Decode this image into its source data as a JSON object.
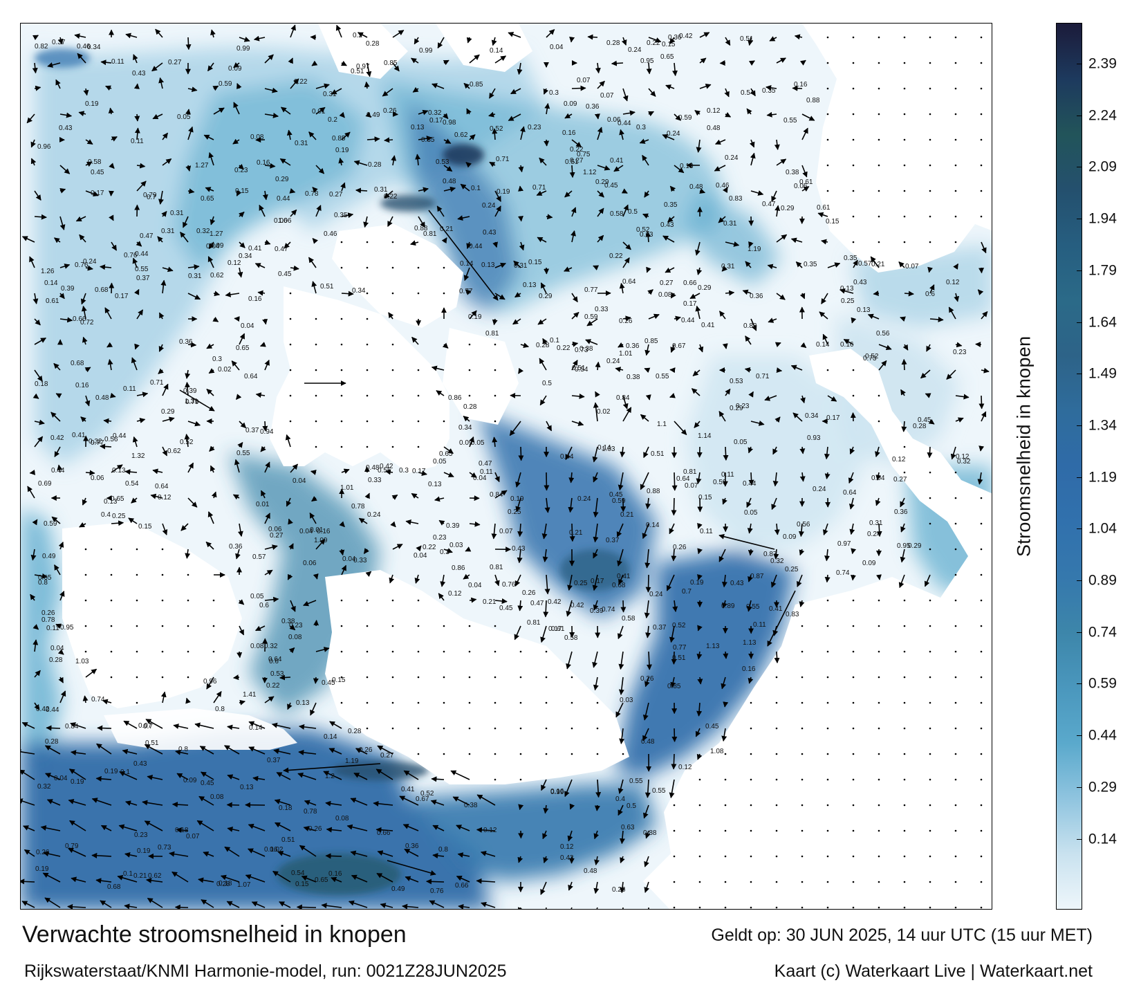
{
  "footer": {
    "title": "Verwachte stroomsnelheid in knopen",
    "source": "Rijkswaterstaat/KNMI Harmonie-model, run: 0021Z28JUN2025",
    "valid": "Geldt op: 30 JUN 2025, 14 uur UTC (15 uur MET)",
    "credit": "Kaart (c) Waterkaart Live | Waterkaart.net"
  },
  "colorbar": {
    "label": "Stroomsnelheid in knopen",
    "ticks": [
      "2.39",
      "2.24",
      "2.09",
      "1.94",
      "1.79",
      "1.64",
      "1.49",
      "1.34",
      "1.19",
      "1.04",
      "0.89",
      "0.74",
      "0.59",
      "0.44",
      "0.29",
      "0.14"
    ],
    "colors": [
      "#1b1b3a",
      "#1d3a5e",
      "#22545a",
      "#24506e",
      "#265e80",
      "#2b6a88",
      "#2d6388",
      "#2f6c9c",
      "#2f6ba8",
      "#3171ad",
      "#3578ad",
      "#3d86aa",
      "#4a97bd",
      "#5aa9cc",
      "#8fc4df",
      "#c9e2ef",
      "#eef6fb"
    ]
  },
  "map": {
    "land_color": "#ffffff",
    "sea_low_color": "#eef6fb",
    "sea_high_color": "#2f6ba8",
    "speed_labels": [
      {
        "v": "0.19"
      },
      {
        "v": "0.16"
      },
      {
        "v": "0.12"
      },
      {
        "v": "0.13"
      },
      {
        "v": "0.16"
      },
      {
        "v": "0.21"
      },
      {
        "v": "0.41"
      },
      {
        "v": "0.32"
      },
      {
        "v": "0.39"
      },
      {
        "v": "0.26"
      },
      {
        "v": "0.55"
      },
      {
        "v": "0.14"
      },
      {
        "v": "0.13"
      },
      {
        "v": "0.04"
      },
      {
        "v": "0.05"
      },
      {
        "v": "0.06"
      },
      {
        "v": "0.11"
      },
      {
        "v": "0.05"
      },
      {
        "v": "0.24"
      },
      {
        "v": "0.18"
      },
      {
        "v": "0.23"
      },
      {
        "v": "0.11"
      },
      {
        "v": "0.08"
      },
      {
        "v": "0.34"
      },
      {
        "v": "0.32"
      },
      {
        "v": "0.43"
      },
      {
        "v": "0.23"
      },
      {
        "v": "0.12"
      },
      {
        "v": "0.21"
      },
      {
        "v": "0.01"
      },
      {
        "v": "0.12"
      },
      {
        "v": "0.14"
      },
      {
        "v": "0.13"
      },
      {
        "v": "0.07"
      },
      {
        "v": "0.24"
      },
      {
        "v": "0.31"
      },
      {
        "v": "0.37"
      },
      {
        "v": "0.36"
      },
      {
        "v": "0.85"
      },
      {
        "v": "0.74"
      },
      {
        "v": "0.28"
      },
      {
        "v": "0.19"
      },
      {
        "v": "0.15"
      },
      {
        "v": "0.08"
      },
      {
        "v": "0.03"
      },
      {
        "v": "0.26"
      },
      {
        "v": "0.38"
      },
      {
        "v": "0.41"
      },
      {
        "v": "0.36"
      },
      {
        "v": "0.37"
      },
      {
        "v": "0.8"
      },
      {
        "v": "1.03"
      },
      {
        "v": "0.24"
      },
      {
        "v": "0.28"
      },
      {
        "v": "0.37"
      },
      {
        "v": "0.1"
      },
      {
        "v": "0.24"
      },
      {
        "v": "0.15"
      },
      {
        "v": "0.09"
      },
      {
        "v": "0.1"
      },
      {
        "v": "0.05"
      },
      {
        "v": "0.07"
      },
      {
        "v": "0.04"
      },
      {
        "v": "0.29"
      },
      {
        "v": "0.44"
      },
      {
        "v": "0.39"
      },
      {
        "v": "0.38"
      },
      {
        "v": "1.09"
      },
      {
        "v": "0.83"
      },
      {
        "v": "0.38"
      },
      {
        "v": "0.35"
      },
      {
        "v": "0.21"
      },
      {
        "v": "0.19"
      },
      {
        "v": "0.16"
      },
      {
        "v": "0.11"
      },
      {
        "v": "0.13"
      },
      {
        "v": "0.03"
      },
      {
        "v": "0.07"
      },
      {
        "v": "0.12"
      },
      {
        "v": "0.54"
      },
      {
        "v": "0.39"
      },
      {
        "v": "0.45"
      },
      {
        "v": "0.37"
      },
      {
        "v": "0.99"
      },
      {
        "v": "0.5"
      },
      {
        "v": "0.41"
      },
      {
        "v": "0.26"
      },
      {
        "v": "0.19"
      },
      {
        "v": "0.22"
      },
      {
        "v": "0.46"
      },
      {
        "v": "0.23"
      },
      {
        "v": "0.24"
      },
      {
        "v": "0.02"
      },
      {
        "v": "0.13"
      },
      {
        "v": "0.28"
      },
      {
        "v": "0.52"
      },
      {
        "v": "0.47"
      },
      {
        "v": "0.44"
      },
      {
        "v": "0.95"
      },
      {
        "v": "0.09"
      },
      {
        "v": "0.36"
      },
      {
        "v": "0.81"
      },
      {
        "v": "0.59"
      },
      {
        "v": "0.47"
      },
      {
        "v": "0.33"
      },
      {
        "v": "0.29"
      },
      {
        "v": "0.22"
      },
      {
        "v": "0.52"
      },
      {
        "v": "0.41"
      },
      {
        "v": "0.17"
      },
      {
        "v": "0.04"
      },
      {
        "v": "0.31"
      },
      {
        "v": "0.26"
      },
      {
        "v": "0.22"
      },
      {
        "v": "0.2"
      },
      {
        "v": "0.04"
      },
      {
        "v": "0.31"
      },
      {
        "v": "0.61"
      },
      {
        "v": "0.55"
      },
      {
        "v": "0.51"
      },
      {
        "v": "0.35"
      },
      {
        "v": "0.3"
      },
      {
        "v": "0.12"
      },
      {
        "v": "0.36"
      },
      {
        "v": "0.48"
      },
      {
        "v": "0.36"
      },
      {
        "v": "0.18"
      },
      {
        "v": "0.17"
      },
      {
        "v": "0.16"
      },
      {
        "v": "0.11"
      },
      {
        "v": "0.12"
      },
      {
        "v": "0.01"
      },
      {
        "v": "0.07"
      },
      {
        "v": "0.45"
      },
      {
        "v": "0.52"
      },
      {
        "v": "0.28"
      },
      {
        "v": "0.26"
      },
      {
        "v": "0.18"
      },
      {
        "v": "0.16"
      },
      {
        "v": "0.3"
      },
      {
        "v": "0.51"
      },
      {
        "v": "0.55"
      },
      {
        "v": "0.61"
      },
      {
        "v": "0.02"
      },
      {
        "v": "0.11"
      },
      {
        "v": "0.15"
      },
      {
        "v": "0.13"
      },
      {
        "v": "0.04"
      },
      {
        "v": "0.43"
      },
      {
        "v": "0.44"
      },
      {
        "v": "0.37"
      },
      {
        "v": "0.21"
      },
      {
        "v": "0.17"
      },
      {
        "v": "0.04"
      },
      {
        "v": "0.11"
      },
      {
        "v": "0.23"
      },
      {
        "v": "0.14"
      },
      {
        "v": "0.33"
      },
      {
        "v": "0.58"
      },
      {
        "v": "0.04"
      },
      {
        "v": "0.16"
      },
      {
        "v": "0.14"
      },
      {
        "v": "0.28"
      },
      {
        "v": "0.24"
      },
      {
        "v": "0.16"
      },
      {
        "v": "0.22"
      },
      {
        "v": "0.14"
      },
      {
        "v": "0.13"
      },
      {
        "v": "0.14"
      },
      {
        "v": "0.09"
      },
      {
        "v": "0.06"
      },
      {
        "v": "0.08"
      },
      {
        "v": "0.07"
      },
      {
        "v": "0.04"
      },
      {
        "v": "0.29"
      },
      {
        "v": "0.25"
      },
      {
        "v": "0.05"
      },
      {
        "v": "0.06"
      },
      {
        "v": "0.17"
      },
      {
        "v": "0.19"
      },
      {
        "v": "0.27"
      },
      {
        "v": "0.25"
      },
      {
        "v": "0.02"
      },
      {
        "v": "0.07"
      },
      {
        "v": "0.14"
      },
      {
        "v": "0.17"
      },
      {
        "v": "0.15"
      },
      {
        "v": "0.06"
      },
      {
        "v": "0.11"
      },
      {
        "v": "0.08"
      },
      {
        "v": "0.09"
      },
      {
        "v": "0.16"
      },
      {
        "v": "0.26"
      },
      {
        "v": "0.12"
      },
      {
        "v": "0.25"
      },
      {
        "v": "0.26"
      },
      {
        "v": "0.04"
      },
      {
        "v": "0.29"
      },
      {
        "v": "0.31"
      },
      {
        "v": "0.15"
      },
      {
        "v": "0.24"
      },
      {
        "v": "0.2"
      },
      {
        "v": "0.13"
      },
      {
        "v": "0.19"
      },
      {
        "v": "0.11"
      },
      {
        "v": "0.16"
      },
      {
        "v": "0.22"
      },
      {
        "v": "0.23"
      },
      {
        "v": "0.17"
      },
      {
        "v": "0.97"
      },
      {
        "v": "0.96"
      },
      {
        "v": "0.27"
      },
      {
        "v": "0.3"
      },
      {
        "v": "0.29"
      },
      {
        "v": "0.55"
      },
      {
        "v": "0.42"
      },
      {
        "v": "0.35"
      },
      {
        "v": "0.32"
      },
      {
        "v": "0.27"
      },
      {
        "v": "0.25"
      },
      {
        "v": "0.24"
      },
      {
        "v": "0.18"
      },
      {
        "v": "0.21"
      },
      {
        "v": "0.12"
      },
      {
        "v": "0.22"
      },
      {
        "v": "0.3"
      },
      {
        "v": "0.06"
      },
      {
        "v": "0.27"
      },
      {
        "v": "0.28"
      },
      {
        "v": "0.23"
      },
      {
        "v": "0.29"
      },
      {
        "v": "0.51"
      },
      {
        "v": "0.66"
      },
      {
        "v": "0.62"
      },
      {
        "v": "0.55"
      },
      {
        "v": "0.51"
      },
      {
        "v": "0.36"
      },
      {
        "v": "0.48"
      },
      {
        "v": "0.47"
      },
      {
        "v": "0.31"
      },
      {
        "v": "0.14"
      },
      {
        "v": "0.24"
      },
      {
        "v": "0.31"
      },
      {
        "v": "0.44"
      },
      {
        "v": "0.09"
      },
      {
        "v": "0.1"
      },
      {
        "v": "0.68"
      },
      {
        "v": "0.25"
      },
      {
        "v": "0.56"
      },
      {
        "v": "0.77"
      },
      {
        "v": "0.84"
      },
      {
        "v": "0.61"
      },
      {
        "v": "0.59"
      },
      {
        "v": "0.64"
      },
      {
        "v": "0.52"
      },
      {
        "v": "0.43"
      },
      {
        "v": "0.29"
      },
      {
        "v": "0.26"
      },
      {
        "v": "0.35"
      },
      {
        "v": "0.37"
      },
      {
        "v": "0.35"
      },
      {
        "v": "0.16"
      },
      {
        "v": "0.58"
      },
      {
        "v": "0.34"
      },
      {
        "v": "1.12"
      },
      {
        "v": "1.13"
      },
      {
        "v": "0.99"
      },
      {
        "v": "0.81"
      },
      {
        "v": "0.65"
      },
      {
        "v": "0.45"
      },
      {
        "v": "0.15"
      },
      {
        "v": "0.33"
      },
      {
        "v": "0.44"
      },
      {
        "v": "0.66"
      },
      {
        "v": "0.79"
      },
      {
        "v": "0.17"
      },
      {
        "v": "0.24"
      },
      {
        "v": "0.45"
      },
      {
        "v": "1.32"
      },
      {
        "v": "1.26"
      },
      {
        "v": "1.01"
      },
      {
        "v": "0.53"
      },
      {
        "v": "0.28"
      },
      {
        "v": "0.19"
      },
      {
        "v": "0.43"
      },
      {
        "v": "0.48"
      },
      {
        "v": "0.58"
      },
      {
        "v": "0.7"
      },
      {
        "v": "0.45"
      },
      {
        "v": "0.12"
      },
      {
        "v": "0.36"
      },
      {
        "v": "0.79"
      },
      {
        "v": "0.55"
      },
      {
        "v": "0.45"
      },
      {
        "v": "1.31"
      },
      {
        "v": "0.85"
      },
      {
        "v": "0.44"
      },
      {
        "v": "0.27"
      },
      {
        "v": "0.17"
      },
      {
        "v": "0.22"
      },
      {
        "v": "0.31"
      },
      {
        "v": "0.32"
      },
      {
        "v": "0.15"
      },
      {
        "v": "0.13"
      },
      {
        "v": "0.1"
      },
      {
        "v": "0.54"
      },
      {
        "v": "0.88"
      },
      {
        "v": "0.71"
      },
      {
        "v": "0.52"
      },
      {
        "v": "0.24"
      },
      {
        "v": "1.41"
      },
      {
        "v": "1.27"
      },
      {
        "v": "1.19"
      },
      {
        "v": "0.84"
      },
      {
        "v": "0.65"
      },
      {
        "v": "0.26"
      },
      {
        "v": "0.48"
      },
      {
        "v": "0.88"
      },
      {
        "v": "0.71"
      },
      {
        "v": "0.18"
      },
      {
        "v": "0.09"
      },
      {
        "v": "0.07"
      },
      {
        "v": "0.56"
      },
      {
        "v": "0.68"
      },
      {
        "v": "0.41"
      },
      {
        "v": "0.21"
      },
      {
        "v": "1.07"
      },
      {
        "v": "0.62"
      },
      {
        "v": "0.95"
      },
      {
        "v": "0.85"
      },
      {
        "v": "0.42"
      },
      {
        "v": "0.67"
      },
      {
        "v": "0.61"
      },
      {
        "v": "0.71"
      },
      {
        "v": "0.7"
      },
      {
        "v": "0.68"
      },
      {
        "v": "0.3"
      },
      {
        "v": "0.32"
      },
      {
        "v": "0.65"
      },
      {
        "v": "0.26"
      },
      {
        "v": "0.04"
      },
      {
        "v": "0.59"
      },
      {
        "v": "0.8"
      },
      {
        "v": "0.77"
      },
      {
        "v": "0.78"
      },
      {
        "v": "0.86"
      },
      {
        "v": "0.79"
      },
      {
        "v": "0.81"
      },
      {
        "v": "0.43"
      },
      {
        "v": "0.7"
      },
      {
        "v": "0.51"
      },
      {
        "v": "0.97"
      },
      {
        "v": "0.15"
      },
      {
        "v": "0.78"
      },
      {
        "v": "0.87"
      },
      {
        "v": "0.72"
      },
      {
        "v": "0.76"
      },
      {
        "v": "0.06"
      },
      {
        "v": "0.34"
      },
      {
        "v": "0.44"
      },
      {
        "v": "0.16"
      },
      {
        "v": "0.13"
      },
      {
        "v": "1.1"
      },
      {
        "v": "0.84"
      },
      {
        "v": "0.8"
      },
      {
        "v": "0.75"
      },
      {
        "v": "0.73"
      },
      {
        "v": "0.95"
      },
      {
        "v": "0.43"
      },
      {
        "v": "0.27"
      },
      {
        "v": "0.42"
      },
      {
        "v": "0.46"
      },
      {
        "v": "0.04"
      },
      {
        "v": "0.83"
      },
      {
        "v": "0.76"
      },
      {
        "v": "0.71"
      },
      {
        "v": "0.74"
      },
      {
        "v": "0.77"
      },
      {
        "v": "0.86"
      },
      {
        "v": "0.19"
      },
      {
        "v": "0.08"
      },
      {
        "v": "0.05"
      },
      {
        "v": "0.12"
      },
      {
        "v": "0.88"
      },
      {
        "v": "0.85"
      },
      {
        "v": "0.64"
      },
      {
        "v": "0.59"
      },
      {
        "v": "0.69"
      },
      {
        "v": "0.65"
      },
      {
        "v": "0.51"
      },
      {
        "v": "0.83"
      },
      {
        "v": "0.34"
      },
      {
        "v": "0.29"
      },
      {
        "v": "0.22"
      },
      {
        "v": "0.31"
      },
      {
        "v": "0.32"
      },
      {
        "v": "0.28"
      },
      {
        "v": "0.19"
      },
      {
        "v": "0.51"
      },
      {
        "v": "1.27"
      },
      {
        "v": "0.53"
      },
      {
        "v": "0.44"
      },
      {
        "v": "0.42"
      },
      {
        "v": "0.5"
      },
      {
        "v": "0.38"
      },
      {
        "v": "0.31"
      },
      {
        "v": "0.45"
      },
      {
        "v": "0.44"
      },
      {
        "v": "0.41"
      },
      {
        "v": "0.47"
      },
      {
        "v": "0.54"
      },
      {
        "v": "0.46"
      },
      {
        "v": "0.43"
      },
      {
        "v": "0.45"
      },
      {
        "v": "0.55"
      },
      {
        "v": "0.6"
      },
      {
        "v": "0.54"
      },
      {
        "v": "0.49"
      },
      {
        "v": "0.48"
      },
      {
        "v": "0.41"
      },
      {
        "v": "0.38"
      },
      {
        "v": "0.44"
      },
      {
        "v": "0.42"
      },
      {
        "v": "0.57"
      },
      {
        "v": "0.62"
      },
      {
        "v": "0.67"
      },
      {
        "v": "0.65"
      },
      {
        "v": "0.59"
      },
      {
        "v": "0.63"
      },
      {
        "v": "0.19"
      },
      {
        "v": "0.23"
      },
      {
        "v": "0.28"
      },
      {
        "v": "0.49"
      },
      {
        "v": "0.47"
      },
      {
        "v": "0.48"
      },
      {
        "v": "0.39"
      },
      {
        "v": "0.51"
      },
      {
        "v": "0.58"
      },
      {
        "v": "0.6"
      },
      {
        "v": "0.51"
      },
      {
        "v": "0.48"
      },
      {
        "v": "0.73"
      },
      {
        "v": "0.81"
      },
      {
        "v": "0.74"
      },
      {
        "v": "0.68"
      },
      {
        "v": "0.87"
      },
      {
        "v": "0.96"
      },
      {
        "v": "0.93"
      },
      {
        "v": "0.77"
      },
      {
        "v": "0.85"
      },
      {
        "v": "0.63"
      },
      {
        "v": "0.62"
      },
      {
        "v": "1.01"
      },
      {
        "v": "0.4"
      },
      {
        "v": "0.5"
      },
      {
        "v": "0.6"
      },
      {
        "v": "0.64"
      },
      {
        "v": "0.78"
      },
      {
        "v": "1.03"
      },
      {
        "v": "1.06"
      },
      {
        "v": "0.94"
      },
      {
        "v": "0.8"
      },
      {
        "v": "0.76"
      },
      {
        "v": "0.73"
      },
      {
        "v": "0.66"
      },
      {
        "v": "0.65"
      },
      {
        "v": "0.64"
      },
      {
        "v": "0.78"
      },
      {
        "v": "0.76"
      },
      {
        "v": "0.32"
      },
      {
        "v": "0.36"
      },
      {
        "v": "0.34"
      },
      {
        "v": "0.49"
      },
      {
        "v": "0.53"
      },
      {
        "v": "0.57"
      },
      {
        "v": "0.59"
      },
      {
        "v": "0.64"
      },
      {
        "v": "0.98"
      },
      {
        "v": "1.08"
      },
      {
        "v": "1.14"
      },
      {
        "v": "1.13"
      },
      {
        "v": "1.19"
      },
      {
        "v": "0.88"
      },
      {
        "v": "0.82"
      },
      {
        "v": "0.27"
      },
      {
        "v": "0.43"
      },
      {
        "v": "0.65"
      },
      {
        "v": "0.64"
      },
      {
        "v": "0.28"
      },
      {
        "v": "0.4"
      },
      {
        "v": "0.35"
      },
      {
        "v": "0.43"
      },
      {
        "v": "0.42"
      },
      {
        "v": "0.45"
      },
      {
        "v": "0.52"
      },
      {
        "v": "0.55"
      },
      {
        "v": "0.56"
      },
      {
        "v": "0.66"
      },
      {
        "v": "0.81"
      },
      {
        "v": "0.89"
      },
      {
        "v": "0.99"
      },
      {
        "v": "1.2"
      },
      {
        "v": "0.31"
      },
      {
        "v": "0.08"
      },
      {
        "v": "0.05"
      },
      {
        "v": "0.01"
      },
      {
        "v": "0.09"
      },
      {
        "v": "0.04"
      }
    ]
  }
}
